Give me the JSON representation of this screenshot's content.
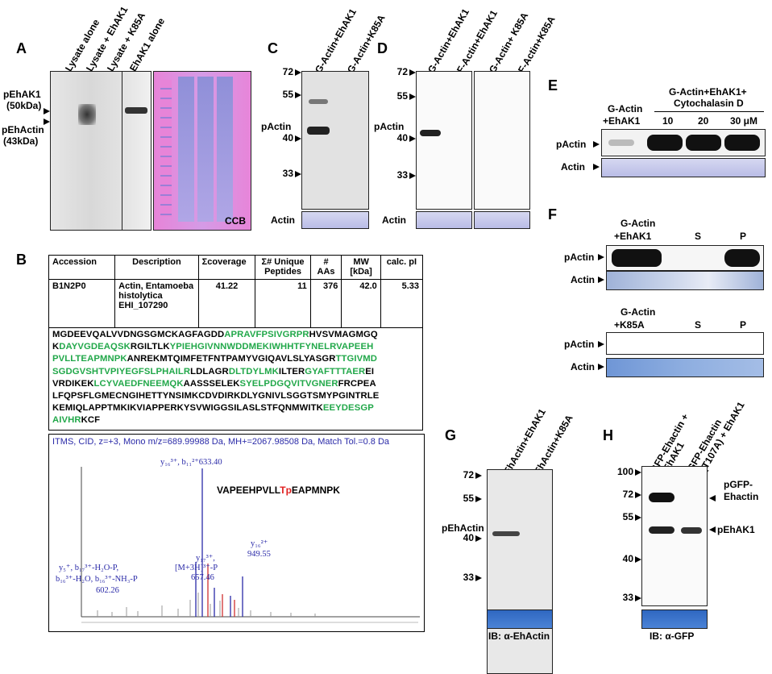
{
  "panels": {
    "A": {
      "letter": "A",
      "lanes": [
        "Lysate alone",
        "Lysate + EhAK1",
        "Lysate + K85A",
        "EhAK1 alone"
      ],
      "markers": [
        {
          "name": "pEhAK1",
          "mw": "(50kDa)"
        },
        {
          "name": "pEhActin",
          "mw": "(43kDa)"
        }
      ],
      "stain": "CCB"
    },
    "B": {
      "letter": "B",
      "table": {
        "headers": [
          "Accession",
          "Description",
          "Σcoverage",
          "Σ# Unique Peptides",
          "# AAs",
          "MW [kDa]",
          "calc. pI"
        ],
        "row": [
          "B1N2P0",
          "Actin, Entamoeba histolytica EHI_107290",
          "41.22",
          "11",
          "376",
          "42.0",
          "5.33"
        ]
      },
      "sequence_lines": [
        [
          [
            "MGDEEVQALVVDNGSGMCKAGFAGDD",
            0
          ],
          [
            "APRAVFPSIVGRPR",
            1
          ],
          [
            "HVSVMAGMGQ",
            0
          ]
        ],
        [
          [
            "K",
            0
          ],
          [
            "DAYVGDEAQSK",
            1
          ],
          [
            "RGILTLK",
            0
          ],
          [
            "YPIEHGIVNNWDDMEKIWHHTFYNELRVAPEEH",
            1
          ]
        ],
        [
          [
            "PVLLTEAPMNPK",
            1
          ],
          [
            "ANREKMTQIMFETFNTPAMYVGIQAVLSLYASGR",
            0
          ],
          [
            "TTGIVMD",
            1
          ]
        ],
        [
          [
            "SGDGVSHTVPIYEGFSLPHAILR",
            1
          ],
          [
            "LDLAGR",
            0
          ],
          [
            "DLTDYLMK",
            1
          ],
          [
            "ILTER",
            0
          ],
          [
            "GYAFTTTAER",
            1
          ],
          [
            "EI",
            0
          ]
        ],
        [
          [
            "VRDIKEK",
            0
          ],
          [
            "LCYVAEDFNEEMQK",
            1
          ],
          [
            "AASSSELEK",
            0
          ],
          [
            "SYELPDGQVITVGNER",
            1
          ],
          [
            "FRCPEA",
            0
          ]
        ],
        [
          [
            "LFQPSFLGMECNGIHETTYNSIMKCDVDIRKDLYGNIVLSGGTSMYPGINTRLE",
            0
          ]
        ],
        [
          [
            "KEMIQLAPPTMKIKVIAPPERKYSVWIGGSILASLSTFQNMWITK",
            0
          ],
          [
            "EEYDESGP",
            1
          ]
        ],
        [
          [
            "AIVHR",
            1
          ],
          [
            "KCF",
            0
          ]
        ]
      ],
      "spectrum": {
        "title": "ITMS, CID, z=+3, Mono m/z=689.99988 Da, MH+=2067.98508 Da, Match Tol.=0.8 Da",
        "peptide_pre": "VAPEEHPVLL",
        "peptide_mod": "Tp",
        "peptide_post": "EAPMNPK",
        "peak1": "y₁₆³⁺, b₁₁²⁺633.40",
        "peak2a": "y₁₆²⁺",
        "peak2b": "949.55",
        "peak3a": "y₁₇³⁺,",
        "peak3b": "[M+3H]³⁺-P",
        "peak3c": "657.46",
        "peak4a": "y₅⁺, b₁₇³⁺-H₂O-P,",
        "peak4b": "b₁₆³⁺-H₂O, b₁₆³⁺-NH₃-P",
        "peak4c": "602.26"
      }
    },
    "C": {
      "letter": "C",
      "lanes": [
        "G-Actin+EhAK1",
        "G-Actin+K85A"
      ],
      "mw": [
        "72",
        "55",
        "40",
        "33"
      ],
      "band_label": "pActin",
      "loading_label": "Actin"
    },
    "D": {
      "letter": "D",
      "lanes": [
        "G-Actin+EhAK1",
        "F-Actin+EhAK1",
        "G-Actin+ K85A",
        "F-Actin+K85A"
      ],
      "mw": [
        "72",
        "55",
        "40",
        "33"
      ],
      "band_label": "pActin",
      "loading_label": "Actin"
    },
    "E": {
      "letter": "E",
      "col1a": "G-Actin",
      "col1b": "+EhAK1",
      "group1": "G-Actin+EhAK1+",
      "group2": "Cytochalasin D",
      "conc": [
        "10",
        "20",
        "30 μM"
      ],
      "band_label": "pActin",
      "loading_label": "Actin"
    },
    "F": {
      "letter": "F",
      "top_col1a": "G-Actin",
      "top_col1b": "+EhAK1",
      "bottom_col1a": "G-Actin",
      "bottom_col1b": "+K85A",
      "s": "S",
      "p": "P",
      "band_label": "pActin",
      "loading_label": "Actin"
    },
    "G": {
      "letter": "G",
      "lanes": [
        "EhActin+EhAK1",
        "EhActin+K85A"
      ],
      "mw": [
        "72",
        "55",
        "40",
        "33"
      ],
      "band_label": "pEhActin",
      "ib": "IB: α-EhActin"
    },
    "H": {
      "letter": "H",
      "lanes": [
        "GFP-Ehactin +",
        "EhAK1",
        "GFP-Ehactin",
        "(T107A) + EhAK1"
      ],
      "mw": [
        "100",
        "72",
        "55",
        "40",
        "33"
      ],
      "right1a": "pGFP-",
      "right1b": "Ehactin",
      "right2": "pEhAK1",
      "ib": "IB: α-GFP"
    }
  }
}
